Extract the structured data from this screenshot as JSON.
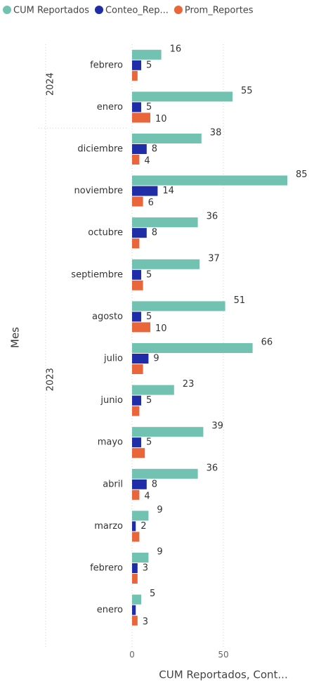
{
  "chart_data": {
    "type": "bar",
    "orientation": "horizontal",
    "x_axis_label": "CUM Reportados, Cont...",
    "y_axis_label": "Mes",
    "category_groups": [
      {
        "label": "2024",
        "categories": [
          "febrero",
          "enero"
        ]
      },
      {
        "label": "2023",
        "categories": [
          "diciembre",
          "noviembre",
          "octubre",
          "septiembre",
          "agosto",
          "julio",
          "junio",
          "mayo",
          "abril",
          "marzo",
          "febrero",
          "enero"
        ]
      }
    ],
    "series": [
      {
        "name": "CUM Reportados",
        "color": "#71c2b0",
        "values": [
          16,
          55,
          38,
          85,
          36,
          37,
          51,
          66,
          23,
          39,
          36,
          9,
          9,
          5
        ],
        "value_labels": [
          "16",
          "55",
          "38",
          "85",
          "36",
          "37",
          "51",
          "66",
          "23",
          "39",
          "36",
          "9",
          "9",
          "5"
        ]
      },
      {
        "name": "Conteo_Rep...",
        "color": "#1f2ea6",
        "values": [
          5,
          5,
          8,
          14,
          8,
          5,
          5,
          9,
          5,
          5,
          8,
          2,
          3,
          2
        ],
        "value_labels": [
          "5",
          "5",
          "8",
          "14",
          "8",
          "5",
          "5",
          "9",
          "5",
          "5",
          "8",
          "2",
          "3",
          null
        ]
      },
      {
        "name": "Prom_Reportes",
        "color": "#e8663a",
        "values": [
          3,
          10,
          4,
          6,
          4,
          6,
          10,
          6,
          4,
          7,
          4,
          4,
          3,
          3
        ],
        "value_labels": [
          null,
          "10",
          "4",
          "6",
          null,
          null,
          "10",
          null,
          null,
          null,
          "4",
          null,
          null,
          "3"
        ]
      }
    ],
    "xlim": [
      0,
      95
    ],
    "xticks": [
      0,
      50
    ],
    "grid": true
  }
}
